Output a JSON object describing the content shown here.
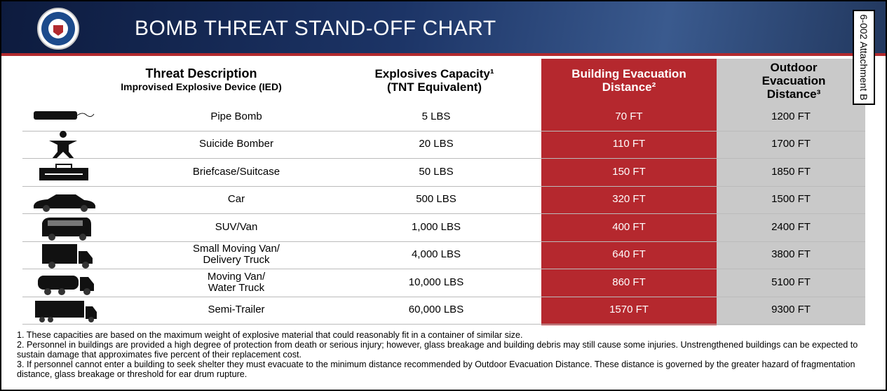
{
  "header": {
    "title": "BOMB THREAT STAND-OFF CHART",
    "tag": "6-002 Attachment B"
  },
  "table": {
    "columns": {
      "threat": "Threat Description",
      "ied": "Improvised Explosive Device (IED)",
      "capacity": "Explosives Capacity¹ (TNT Equivalent)",
      "building": "Building Evacuation Distance²",
      "outdoor": "Outdoor Evacuation Distance³"
    },
    "rows": [
      [
        "Pipe Bomb",
        "5 LBS",
        "70 FT",
        "1200 FT"
      ],
      [
        "Suicide Bomber",
        "20 LBS",
        "110 FT",
        "1700 FT"
      ],
      [
        "Briefcase/Suitcase",
        "50 LBS",
        "150 FT",
        "1850 FT"
      ],
      [
        "Car",
        "500 LBS",
        "320 FT",
        "1500 FT"
      ],
      [
        "SUV/Van",
        "1,000 LBS",
        "400 FT",
        "2400 FT"
      ],
      [
        "Small Moving Van/\nDelivery Truck",
        "4,000 LBS",
        "640 FT",
        "3800 FT"
      ],
      [
        "Moving Van/\nWater Truck",
        "10,000 LBS",
        "860 FT",
        "5100 FT"
      ],
      [
        "Semi-Trailer",
        "60,000 LBS",
        "1570 FT",
        "9300 FT"
      ]
    ]
  },
  "footnotes": [
    "1. These capacities are based on the maximum weight of explosive material that could reasonably fit in a container of similar size.",
    "2. Personnel in buildings are provided a high degree of protection from death or serious injury; however,  glass breakage and building debris may still cause some injuries. Unstrengthened buildings can be expected to sustain damage that approximates five percent of their replacement cost.",
    "3.  If personnel cannot enter a building to seek shelter they must evacuate to the minimum distance recommended by Outdoor Evacuation Distance. These distance is governed by the greater hazard of fragmentation distance, glass breakage or threshold for ear drum rupture."
  ]
}
